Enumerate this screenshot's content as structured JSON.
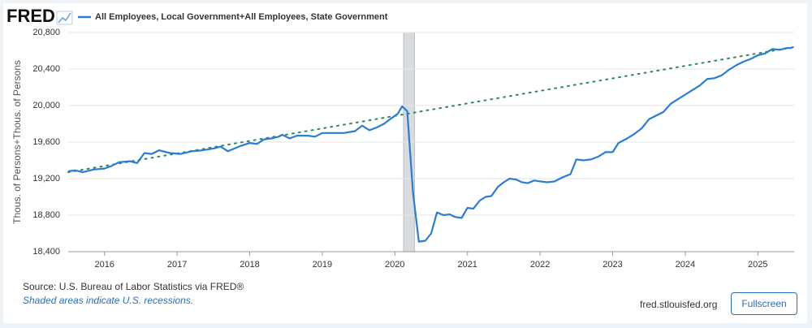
{
  "logo": "FRED",
  "chart_data": {
    "type": "line",
    "y_label": "Thous. of Persons+Thous. of Persons",
    "x": [
      2015.5,
      2015.6,
      2015.7,
      2015.85,
      2016.0,
      2016.1,
      2016.2,
      2016.35,
      2016.45,
      2016.55,
      2016.65,
      2016.75,
      2016.9,
      2017.05,
      2017.2,
      2017.35,
      2017.5,
      2017.6,
      2017.7,
      2017.85,
      2018.0,
      2018.1,
      2018.2,
      2018.3,
      2018.4,
      2018.45,
      2018.55,
      2018.65,
      2018.8,
      2018.9,
      2019.0,
      2019.15,
      2019.3,
      2019.45,
      2019.55,
      2019.65,
      2019.75,
      2019.85,
      2019.95,
      2020.04,
      2020.1,
      2020.17,
      2020.25,
      2020.33,
      2020.42,
      2020.5,
      2020.58,
      2020.67,
      2020.75,
      2020.83,
      2020.92,
      2021.0,
      2021.08,
      2021.17,
      2021.25,
      2021.33,
      2021.42,
      2021.5,
      2021.58,
      2021.67,
      2021.75,
      2021.83,
      2021.92,
      2022.0,
      2022.1,
      2022.2,
      2022.3,
      2022.42,
      2022.5,
      2022.6,
      2022.7,
      2022.8,
      2022.9,
      2023.0,
      2023.08,
      2023.2,
      2023.3,
      2023.4,
      2023.5,
      2023.6,
      2023.7,
      2023.8,
      2023.9,
      2024.0,
      2024.1,
      2024.2,
      2024.3,
      2024.4,
      2024.5,
      2024.6,
      2024.7,
      2024.8,
      2024.9,
      2025.0,
      2025.1,
      2025.2,
      2025.3,
      2025.4,
      2025.47
    ],
    "series": [
      {
        "name": "All Employees, Local Government+All Employees, State Government",
        "color": "#2a7dd4",
        "values": [
          19280,
          19290,
          19270,
          19300,
          19310,
          19340,
          19380,
          19390,
          19370,
          19480,
          19470,
          19510,
          19480,
          19470,
          19500,
          19510,
          19530,
          19550,
          19500,
          19550,
          19590,
          19580,
          19630,
          19640,
          19660,
          19680,
          19640,
          19670,
          19670,
          19660,
          19700,
          19700,
          19700,
          19720,
          19780,
          19730,
          19760,
          19800,
          19860,
          19910,
          19990,
          19940,
          19050,
          18510,
          18520,
          18600,
          18830,
          18800,
          18810,
          18780,
          18770,
          18880,
          18870,
          18960,
          19000,
          19010,
          19110,
          19160,
          19200,
          19190,
          19160,
          19150,
          19180,
          19170,
          19160,
          19170,
          19210,
          19250,
          19410,
          19400,
          19410,
          19440,
          19490,
          19490,
          19590,
          19640,
          19690,
          19750,
          19850,
          19890,
          19930,
          20020,
          20070,
          20120,
          20170,
          20220,
          20290,
          20300,
          20330,
          20390,
          20440,
          20480,
          20510,
          20550,
          20570,
          20620,
          20610,
          20630,
          20630
        ]
      }
    ],
    "trend": {
      "x": [
        2015.5,
        2025.5
      ],
      "values": [
        19270,
        20640
      ],
      "color": "#2e8b57"
    },
    "recessions": [
      [
        2020.12,
        2020.27
      ]
    ],
    "recession_color": "#d9dcdf",
    "xlim": [
      2015.5,
      2025.5
    ],
    "xticks": [
      2016,
      2017,
      2018,
      2019,
      2020,
      2021,
      2022,
      2023,
      2024,
      2025
    ],
    "ylim": [
      18400,
      20800
    ],
    "yticks": [
      {
        "value": 18400,
        "label": "18,400"
      },
      {
        "value": 18800,
        "label": "18,800"
      },
      {
        "value": 19200,
        "label": "19,200"
      },
      {
        "value": 19600,
        "label": "19,600"
      },
      {
        "value": 20000,
        "label": "20,000"
      },
      {
        "value": 20400,
        "label": "20,400"
      },
      {
        "value": 20800,
        "label": "20,800"
      }
    ],
    "grid": true
  },
  "footer": {
    "source": "Source: U.S. Bureau of Labor Statistics via FRED®",
    "note": "Shaded areas indicate U.S. recessions.",
    "link": "fred.stlouisfed.org",
    "button": "Fullscreen"
  }
}
